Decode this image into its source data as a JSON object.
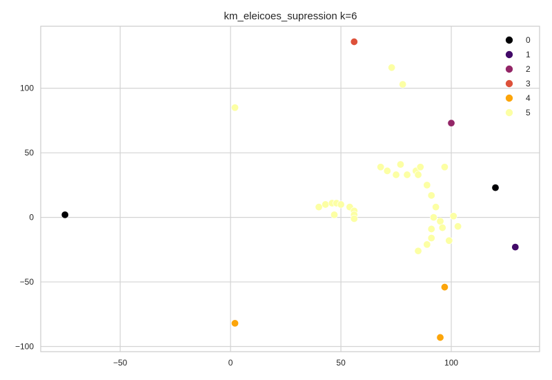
{
  "chart_data": {
    "type": "scatter",
    "title": "km_eleicoes_supression k=6",
    "xlabel": "",
    "ylabel": "",
    "xlim": [
      -86,
      140
    ],
    "ylim": [
      -104,
      148
    ],
    "xticks": [
      -50,
      0,
      50,
      100
    ],
    "yticks": [
      -100,
      -50,
      0,
      50,
      100
    ],
    "grid": true,
    "legend_position": "top-right",
    "series": [
      {
        "name": "0",
        "color": "#000004",
        "points": [
          [
            -75,
            2
          ],
          [
            120,
            23
          ]
        ]
      },
      {
        "name": "1",
        "color": "#420a68",
        "points": [
          [
            129,
            -23
          ]
        ]
      },
      {
        "name": "2",
        "color": "#932667",
        "points": [
          [
            100,
            73
          ]
        ]
      },
      {
        "name": "3",
        "color": "#dd513a",
        "points": [
          [
            56,
            136
          ]
        ]
      },
      {
        "name": "4",
        "color": "#fca50a",
        "points": [
          [
            2,
            -82
          ],
          [
            97,
            -54
          ],
          [
            95,
            -93
          ]
        ]
      },
      {
        "name": "5",
        "color": "#fcffa4",
        "points": [
          [
            2,
            85
          ],
          [
            73,
            116
          ],
          [
            78,
            103
          ],
          [
            68,
            39
          ],
          [
            71,
            36
          ],
          [
            75,
            33
          ],
          [
            77,
            41
          ],
          [
            80,
            33
          ],
          [
            84,
            36
          ],
          [
            85,
            33
          ],
          [
            86,
            39
          ],
          [
            97,
            39
          ],
          [
            89,
            25
          ],
          [
            91,
            17
          ],
          [
            93,
            8
          ],
          [
            40,
            8
          ],
          [
            43,
            10
          ],
          [
            46,
            11
          ],
          [
            48,
            11
          ],
          [
            50,
            10
          ],
          [
            54,
            8
          ],
          [
            56,
            5
          ],
          [
            56,
            2
          ],
          [
            56,
            -1
          ],
          [
            47,
            2
          ],
          [
            92,
            0
          ],
          [
            95,
            -3
          ],
          [
            96,
            -8
          ],
          [
            101,
            1
          ],
          [
            103,
            -7
          ],
          [
            91,
            -9
          ],
          [
            91,
            -16
          ],
          [
            99,
            -18
          ],
          [
            89,
            -21
          ],
          [
            85,
            -26
          ]
        ]
      }
    ]
  }
}
